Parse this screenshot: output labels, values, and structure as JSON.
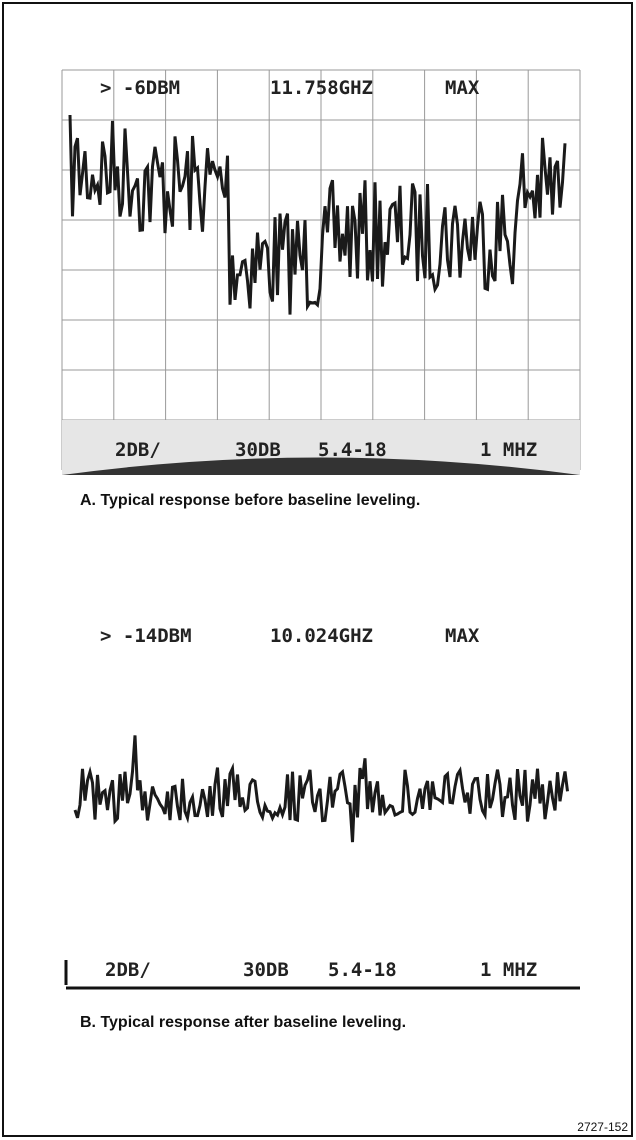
{
  "panel_a": {
    "readout": {
      "reference": "> -6DBM",
      "frequency": "11.758GHZ",
      "mode": "MAX"
    },
    "status": {
      "scale": "2DB/",
      "attenuation": "30DB",
      "band": "5.4-18",
      "resolution": "1 MHZ"
    },
    "caption": "A. Typical response before baseline leveling."
  },
  "panel_b": {
    "readout": {
      "reference": "> -14DBM",
      "frequency": "10.024GHZ",
      "mode": "MAX"
    },
    "status": {
      "scale": "2DB/",
      "attenuation": "30DB",
      "band": "5.4-18",
      "resolution": "1 MHZ"
    },
    "caption": "B. Typical response after baseline leveling."
  },
  "figure_number": "2727-152"
}
